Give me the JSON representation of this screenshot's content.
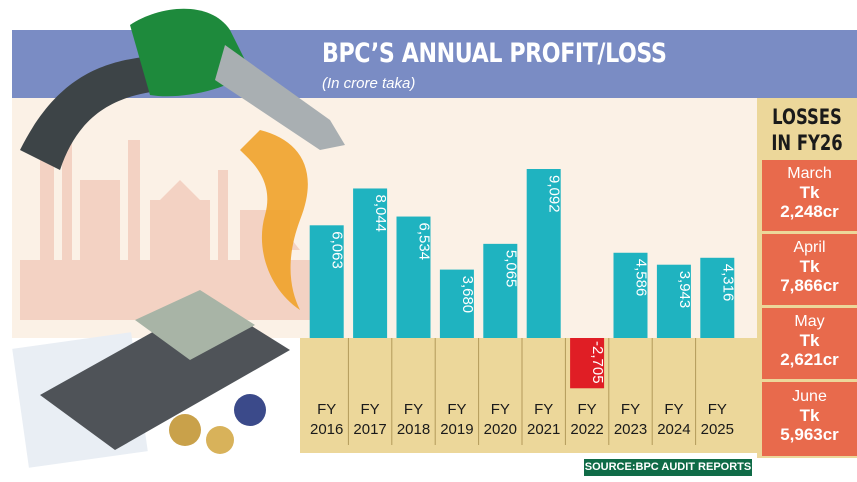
{
  "header": {
    "title": "BPC’S ANNUAL PROFIT/LOSS",
    "subtitle": "(In crore taka)"
  },
  "sidebar": {
    "heading_line1": "LOSSES",
    "heading_line2": "IN FY26",
    "cards": [
      {
        "month": "March",
        "tk": "Tk",
        "amount": "2,248cr"
      },
      {
        "month": "April",
        "tk": "Tk",
        "amount": "7,866cr"
      },
      {
        "month": "May",
        "tk": "Tk",
        "amount": "2,621cr"
      },
      {
        "month": "June",
        "tk": "Tk",
        "amount": "5,963cr"
      }
    ]
  },
  "source": "SOURCE:BPC AUDIT REPORTS",
  "colors": {
    "header_band": "#7a8cc4",
    "bar_positive": "#1fb3c0",
    "bar_negative": "#e01e25",
    "axis_band": "#ecd79a",
    "loss_card": "#e86a4c",
    "source_bg": "#0f6b47"
  },
  "chart_data": {
    "type": "bar",
    "title": "BPC’S ANNUAL PROFIT/LOSS",
    "subtitle": "(In crore taka)",
    "categories": [
      [
        "FY",
        "2016"
      ],
      [
        "FY",
        "2017"
      ],
      [
        "FY",
        "2018"
      ],
      [
        "FY",
        "2019"
      ],
      [
        "FY",
        "2020"
      ],
      [
        "FY",
        "2021"
      ],
      [
        "FY",
        "2022"
      ],
      [
        "FY",
        "2023"
      ],
      [
        "FY",
        "2024"
      ],
      [
        "FY",
        "2025"
      ]
    ],
    "values": [
      6063,
      8044,
      6534,
      3680,
      5065,
      9092,
      -2705,
      4586,
      3943,
      4316
    ],
    "labels": [
      "6,063",
      "8,044",
      "6,534",
      "3,680",
      "5,065",
      "9,092",
      "-2,705",
      "4,586",
      "3,943",
      "4,316"
    ],
    "grid": false
  }
}
